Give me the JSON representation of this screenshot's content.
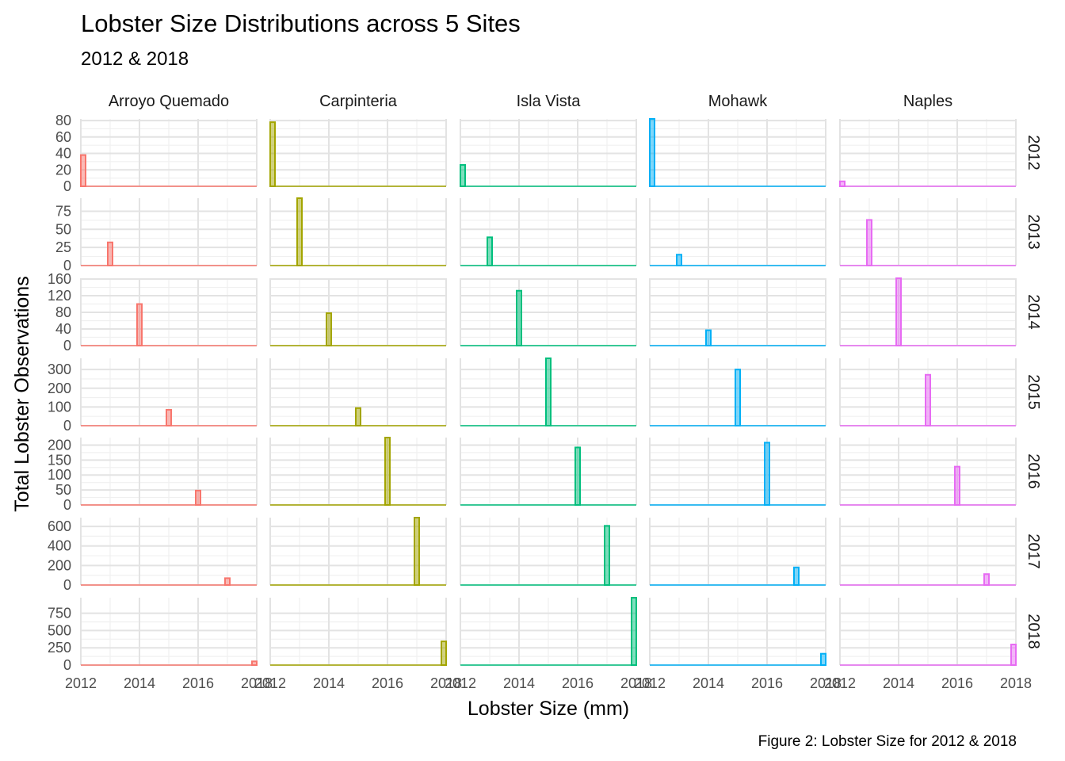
{
  "chart_data": {
    "type": "bar",
    "title": "Lobster Size Distributions across 5 Sites",
    "subtitle": "2012 & 2018",
    "xlabel": "Lobster Size (mm)",
    "ylabel": "Total Lobster Observations",
    "caption": "Figure 2: Lobster Size for 2012 & 2018",
    "x_ticks": [
      "2012",
      "2014",
      "2016",
      "2018"
    ],
    "xlim": [
      2012,
      2018
    ],
    "grid": true,
    "legend": "none",
    "sites": [
      {
        "name": "Arroyo Quemado",
        "color": "#F8766D"
      },
      {
        "name": "Carpinteria",
        "color": "#A3A500"
      },
      {
        "name": "Isla Vista",
        "color": "#00BF7D"
      },
      {
        "name": "Mohawk",
        "color": "#00B0F6"
      },
      {
        "name": "Naples",
        "color": "#E76BF3"
      }
    ],
    "rows": [
      {
        "year": "2012",
        "bar_x": 2012,
        "ylim": [
          0,
          82
        ],
        "y_ticks": [
          "0",
          "20",
          "40",
          "60",
          "80"
        ],
        "values": [
          38,
          78,
          26,
          82,
          6
        ]
      },
      {
        "year": "2013",
        "bar_x": 2013,
        "ylim": [
          0,
          93
        ],
        "y_ticks": [
          "0",
          "25",
          "50",
          "75"
        ],
        "values": [
          32,
          93,
          39,
          15,
          63
        ]
      },
      {
        "year": "2014",
        "bar_x": 2014,
        "ylim": [
          0,
          162
        ],
        "y_ticks": [
          "0",
          "40",
          "80",
          "120",
          "160"
        ],
        "values": [
          100,
          78,
          132,
          37,
          162
        ]
      },
      {
        "year": "2015",
        "bar_x": 2015,
        "ylim": [
          0,
          360
        ],
        "y_ticks": [
          "0",
          "100",
          "200",
          "300"
        ],
        "values": [
          85,
          94,
          360,
          300,
          272
        ]
      },
      {
        "year": "2016",
        "bar_x": 2016,
        "ylim": [
          0,
          225
        ],
        "y_ticks": [
          "0",
          "50",
          "100",
          "150",
          "200"
        ],
        "values": [
          48,
          225,
          192,
          208,
          128
        ]
      },
      {
        "year": "2017",
        "bar_x": 2017,
        "ylim": [
          0,
          690
        ],
        "y_ticks": [
          "0",
          "200",
          "400",
          "600"
        ],
        "values": [
          70,
          690,
          606,
          180,
          112
        ]
      },
      {
        "year": "2018",
        "bar_x": 2018,
        "ylim": [
          0,
          975
        ],
        "y_ticks": [
          "0",
          "250",
          "500",
          "750"
        ],
        "values": [
          54,
          343,
          975,
          164,
          298
        ]
      }
    ]
  }
}
